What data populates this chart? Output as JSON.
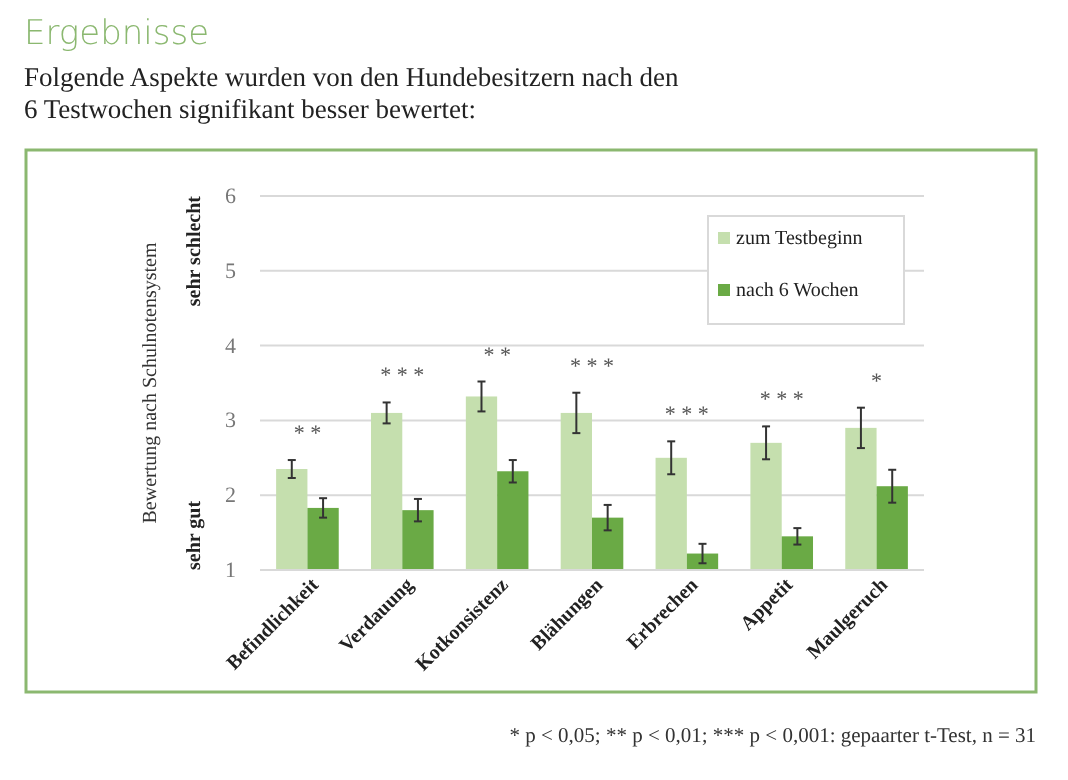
{
  "chart_data": {
    "type": "bar",
    "title": "Ergebnisse",
    "subtitle": "Folgende Aspekte wurden von den Hundebesitzern nach den\n6 Testwochen signifikant besser bewertet:",
    "ylabel": "Bewertung nach Schulnotensystem",
    "categories": [
      "Befindlichkeit",
      "Verdauung",
      "Kotkonsistenz",
      "Blähungen",
      "Erbrechen",
      "Appetit",
      "Maulgeruch"
    ],
    "series": [
      {
        "name": "zum Testbeginn",
        "color": "#c5dfae",
        "values": [
          2.35,
          3.1,
          3.32,
          3.1,
          2.5,
          2.7,
          2.9
        ],
        "errors": [
          0.12,
          0.14,
          0.2,
          0.27,
          0.22,
          0.22,
          0.27
        ]
      },
      {
        "name": "nach 6 Wochen",
        "color": "#6aaa45",
        "values": [
          1.83,
          1.8,
          2.32,
          1.7,
          1.22,
          1.45,
          2.12
        ],
        "errors": [
          0.13,
          0.15,
          0.15,
          0.17,
          0.13,
          0.11,
          0.22
        ]
      }
    ],
    "ylim": [
      1,
      6
    ],
    "yticks": [
      1,
      2,
      3,
      4,
      5,
      6
    ],
    "grid": "y",
    "legend": "top right",
    "annotations": [
      "* *",
      "* * *",
      "* *",
      "* * *",
      "* * *",
      "* * *",
      "*",
      "sehr schlecht",
      "sehr gut",
      "* p < 0,05; ** p < 0,01; *** p < 0,001: gepaarter t-Test, n = 31"
    ]
  }
}
